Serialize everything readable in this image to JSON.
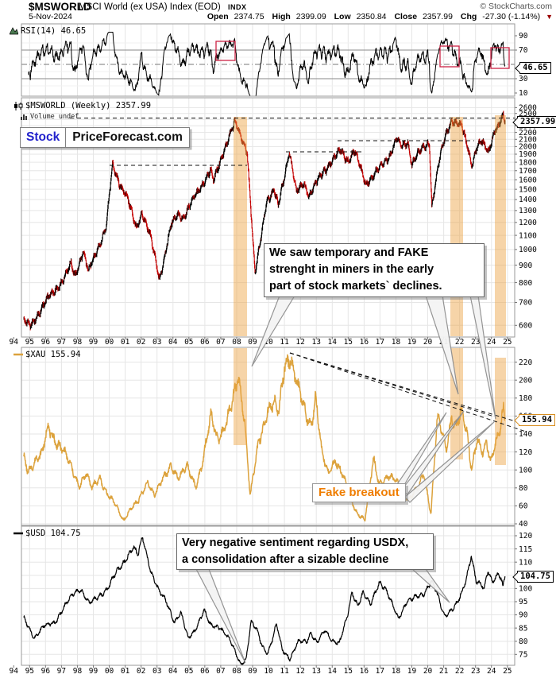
{
  "header": {
    "symbol": "$MSWORLD",
    "description": "MSCI World (ex USA) Index (EOD)",
    "exchange": "INDX",
    "copyright": "© StockCharts.com",
    "date": "5-Nov-2024",
    "quote": {
      "open_label": "Open",
      "open": "2374.75",
      "high_label": "High",
      "high": "2399.09",
      "low_label": "Low",
      "low": "2350.84",
      "close_label": "Close",
      "close": "2357.99",
      "chg_label": "Chg",
      "chg": "-27.30 (-1.14%)",
      "direction": "▼"
    }
  },
  "branding": {
    "logo_left": "Stock",
    "logo_right": "PriceForecast.com"
  },
  "panels": {
    "rsi": {
      "legend": "RSI(14) 46.65",
      "value": "46.65",
      "yticks": [
        90,
        70,
        30,
        10
      ],
      "overbought": 70,
      "oversold": 30,
      "midline": 50
    },
    "price": {
      "legend": "$MSWORLD (Weekly) 2357.99",
      "volume_legend": "Volume undef",
      "value": "2357.99",
      "yticks": [
        2600,
        2500,
        2400,
        2300,
        2200,
        2100,
        2000,
        1900,
        1800,
        1700,
        1600,
        1500,
        1400,
        1300,
        1200,
        1100,
        1000,
        900,
        800,
        700,
        600
      ]
    },
    "xau": {
      "legend": "$XAU 155.94",
      "value": "155.94",
      "yticks": [
        220,
        200,
        180,
        160,
        140,
        120,
        100,
        80,
        60,
        40
      ]
    },
    "usd": {
      "legend": "$USD 104.75",
      "value": "104.75",
      "yticks": [
        120,
        115,
        110,
        105,
        100,
        95,
        90,
        85,
        80,
        75
      ]
    }
  },
  "xaxis": {
    "years": [
      "94",
      "95",
      "96",
      "97",
      "98",
      "99",
      "00",
      "01",
      "02",
      "03",
      "04",
      "05",
      "06",
      "07",
      "08",
      "09",
      "10",
      "11",
      "12",
      "13",
      "14",
      "15",
      "16",
      "17",
      "18",
      "19",
      "20",
      "21",
      "22",
      "23",
      "24",
      "25"
    ]
  },
  "annotations": {
    "miners_note": "We saw temporary and FAKE\nstrenght in miners in the early\npart of stock markets` declines.",
    "fake_breakout": "Fake breakout",
    "usdx_note": "Very negative sentiment regarding USDX,\na consolidation after a sizable decline"
  },
  "colors": {
    "candle_up": "#000000",
    "candle_down": "#c40000",
    "xau_line": "#dca23c",
    "usd_line": "#000000",
    "rsi_line": "#000000",
    "band": "#eda23f",
    "red_box": "#cc2244",
    "annotation_orange": "#ef7d00",
    "logo_blue": "#2222cc",
    "chg_arrow": "#990000"
  },
  "chart_data": [
    {
      "type": "line",
      "name": "RSI(14)",
      "panel": "rsi",
      "last": 46.65,
      "derived_from": "$MSWORLD weekly closes",
      "period": 14,
      "ylim": [
        0,
        100
      ],
      "highlight_boxes_years": [
        [
          2007.6,
          2008.8
        ],
        [
          2021.6,
          2022.8
        ],
        [
          2024.2,
          2025.3
        ]
      ]
    },
    {
      "type": "candlestick",
      "name": "$MSWORLD (Weekly)",
      "panel": "price",
      "yscale": "log",
      "ylim": [
        600,
        2780
      ],
      "last": 2357.99,
      "anchors": [
        [
          1994.6,
          620
        ],
        [
          1995.0,
          595
        ],
        [
          1995.6,
          655
        ],
        [
          1996.2,
          725
        ],
        [
          1997.0,
          800
        ],
        [
          1997.6,
          905
        ],
        [
          1997.85,
          840
        ],
        [
          1998.35,
          985
        ],
        [
          1998.7,
          860
        ],
        [
          1999.2,
          990
        ],
        [
          1999.8,
          1160
        ],
        [
          2000.2,
          1760
        ],
        [
          2000.6,
          1580
        ],
        [
          2001.1,
          1430
        ],
        [
          2001.7,
          1150
        ],
        [
          2002.05,
          1290
        ],
        [
          2002.6,
          1080
        ],
        [
          2003.15,
          820
        ],
        [
          2003.9,
          1180
        ],
        [
          2004.3,
          1270
        ],
        [
          2004.65,
          1240
        ],
        [
          2005.5,
          1460
        ],
        [
          2006.35,
          1700
        ],
        [
          2006.55,
          1580
        ],
        [
          2007.1,
          1900
        ],
        [
          2007.55,
          2150
        ],
        [
          2007.9,
          2350
        ],
        [
          2008.3,
          2120
        ],
        [
          2008.65,
          1950
        ],
        [
          2009.15,
          840
        ],
        [
          2009.85,
          1380
        ],
        [
          2010.35,
          1480
        ],
        [
          2010.6,
          1340
        ],
        [
          2011.3,
          1930
        ],
        [
          2011.75,
          1460
        ],
        [
          2012.2,
          1580
        ],
        [
          2012.55,
          1440
        ],
        [
          2013.4,
          1680
        ],
        [
          2014.5,
          1950
        ],
        [
          2015.0,
          1820
        ],
        [
          2015.4,
          1940
        ],
        [
          2016.1,
          1560
        ],
        [
          2016.7,
          1670
        ],
        [
          2017.6,
          1880
        ],
        [
          2018.05,
          2110
        ],
        [
          2018.3,
          2000
        ],
        [
          2018.75,
          2060
        ],
        [
          2019.0,
          1790
        ],
        [
          2019.5,
          1930
        ],
        [
          2020.1,
          2060
        ],
        [
          2020.25,
          1340
        ],
        [
          2020.7,
          1800
        ],
        [
          2021.1,
          2150
        ],
        [
          2021.5,
          2390
        ],
        [
          2021.85,
          2340
        ],
        [
          2022.15,
          2270
        ],
        [
          2022.5,
          2000
        ],
        [
          2022.75,
          1770
        ],
        [
          2023.1,
          2000
        ],
        [
          2023.35,
          2060
        ],
        [
          2023.8,
          1930
        ],
        [
          2024.2,
          2240
        ],
        [
          2024.45,
          2290
        ],
        [
          2024.72,
          2450
        ],
        [
          2024.85,
          2358
        ]
      ]
    },
    {
      "type": "line",
      "name": "$XAU",
      "panel": "xau",
      "ylim": [
        29,
        227
      ],
      "last": 155.94,
      "anchors": [
        [
          1994.6,
          115
        ],
        [
          1994.9,
          98
        ],
        [
          1995.4,
          113
        ],
        [
          1995.8,
          118
        ],
        [
          1996.15,
          147
        ],
        [
          1996.6,
          134
        ],
        [
          1997.1,
          122
        ],
        [
          1997.6,
          103
        ],
        [
          1998.1,
          83
        ],
        [
          1998.55,
          96
        ],
        [
          1998.9,
          79
        ],
        [
          1999.4,
          92
        ],
        [
          1999.85,
          74
        ],
        [
          2000.35,
          62
        ],
        [
          2000.9,
          44
        ],
        [
          2001.35,
          57
        ],
        [
          2001.85,
          65
        ],
        [
          2002.4,
          88
        ],
        [
          2002.85,
          72
        ],
        [
          2003.9,
          107
        ],
        [
          2004.35,
          90
        ],
        [
          2004.9,
          103
        ],
        [
          2005.45,
          82
        ],
        [
          2005.9,
          110
        ],
        [
          2006.4,
          161
        ],
        [
          2006.8,
          135
        ],
        [
          2007.3,
          148
        ],
        [
          2007.75,
          175
        ],
        [
          2008.1,
          207
        ],
        [
          2008.5,
          158
        ],
        [
          2008.85,
          70
        ],
        [
          2009.35,
          128
        ],
        [
          2009.95,
          168
        ],
        [
          2010.4,
          172
        ],
        [
          2010.65,
          162
        ],
        [
          2011.0,
          218
        ],
        [
          2011.35,
          228
        ],
        [
          2011.85,
          190
        ],
        [
          2012.35,
          162
        ],
        [
          2012.7,
          152
        ],
        [
          2012.95,
          183
        ],
        [
          2013.35,
          118
        ],
        [
          2013.75,
          96
        ],
        [
          2014.2,
          112
        ],
        [
          2014.7,
          92
        ],
        [
          2015.1,
          70
        ],
        [
          2015.55,
          53
        ],
        [
          2016.05,
          44
        ],
        [
          2016.6,
          112
        ],
        [
          2016.95,
          85
        ],
        [
          2017.5,
          92
        ],
        [
          2018.1,
          86
        ],
        [
          2018.8,
          66
        ],
        [
          2019.4,
          80
        ],
        [
          2019.75,
          98
        ],
        [
          2020.2,
          51
        ],
        [
          2020.6,
          156
        ],
        [
          2020.95,
          138
        ],
        [
          2021.15,
          124
        ],
        [
          2021.5,
          160
        ],
        [
          2021.8,
          148
        ],
        [
          2022.1,
          163
        ],
        [
          2022.45,
          142
        ],
        [
          2022.75,
          102
        ],
        [
          2023.1,
          136
        ],
        [
          2023.45,
          118
        ],
        [
          2023.7,
          128
        ],
        [
          2023.95,
          108
        ],
        [
          2024.25,
          132
        ],
        [
          2024.55,
          147
        ],
        [
          2024.75,
          168
        ],
        [
          2024.85,
          156
        ]
      ]
    },
    {
      "type": "line",
      "name": "$USD",
      "panel": "usd",
      "ylim": [
        70,
        123
      ],
      "last": 104.75,
      "anchors": [
        [
          1994.6,
          89
        ],
        [
          1995.3,
          81.5
        ],
        [
          1995.9,
          85.5
        ],
        [
          1996.6,
          87.5
        ],
        [
          1997.2,
          93
        ],
        [
          1997.8,
          98.5
        ],
        [
          1998.2,
          100
        ],
        [
          1998.75,
          94
        ],
        [
          1999.3,
          97
        ],
        [
          1999.9,
          100
        ],
        [
          2000.45,
          106
        ],
        [
          2000.95,
          110.5
        ],
        [
          2001.5,
          115.5
        ],
        [
          2001.8,
          112.5
        ],
        [
          2002.1,
          119.5
        ],
        [
          2002.6,
          107
        ],
        [
          2003.1,
          99
        ],
        [
          2003.6,
          95
        ],
        [
          2004.1,
          87.5
        ],
        [
          2004.5,
          90.5
        ],
        [
          2004.95,
          81
        ],
        [
          2005.4,
          84.5
        ],
        [
          2005.95,
          91.5
        ],
        [
          2006.35,
          86
        ],
        [
          2006.95,
          85.5
        ],
        [
          2007.6,
          80
        ],
        [
          2008.25,
          71.5
        ],
        [
          2008.6,
          73.5
        ],
        [
          2008.9,
          87
        ],
        [
          2009.25,
          84.5
        ],
        [
          2009.6,
          78.5
        ],
        [
          2009.95,
          75.5
        ],
        [
          2010.3,
          81.5
        ],
        [
          2010.5,
          86.5
        ],
        [
          2010.85,
          77
        ],
        [
          2011.35,
          73.5
        ],
        [
          2011.85,
          79.5
        ],
        [
          2012.4,
          80
        ],
        [
          2012.65,
          83.5
        ],
        [
          2013.05,
          79.5
        ],
        [
          2013.55,
          84
        ],
        [
          2013.95,
          80.5
        ],
        [
          2014.45,
          79.5
        ],
        [
          2014.95,
          89
        ],
        [
          2015.25,
          98.5
        ],
        [
          2015.6,
          94
        ],
        [
          2015.95,
          98.5
        ],
        [
          2016.4,
          93.5
        ],
        [
          2016.95,
          102.5
        ],
        [
          2017.3,
          100.5
        ],
        [
          2017.85,
          92.5
        ],
        [
          2018.15,
          88.5
        ],
        [
          2018.65,
          95
        ],
        [
          2019.25,
          96.5
        ],
        [
          2019.75,
          98
        ],
        [
          2020.2,
          103
        ],
        [
          2020.5,
          99.5
        ],
        [
          2020.85,
          92.5
        ],
        [
          2021.05,
          89.5
        ],
        [
          2021.45,
          92
        ],
        [
          2021.85,
          94.5
        ],
        [
          2022.15,
          98
        ],
        [
          2022.45,
          104
        ],
        [
          2022.73,
          113
        ],
        [
          2023.05,
          103
        ],
        [
          2023.35,
          101.5
        ],
        [
          2023.55,
          99.5
        ],
        [
          2023.78,
          106.5
        ],
        [
          2024.05,
          102.5
        ],
        [
          2024.25,
          104.5
        ],
        [
          2024.45,
          106
        ],
        [
          2024.6,
          104
        ],
        [
          2024.72,
          100.5
        ],
        [
          2024.85,
          104.75
        ]
      ]
    }
  ]
}
